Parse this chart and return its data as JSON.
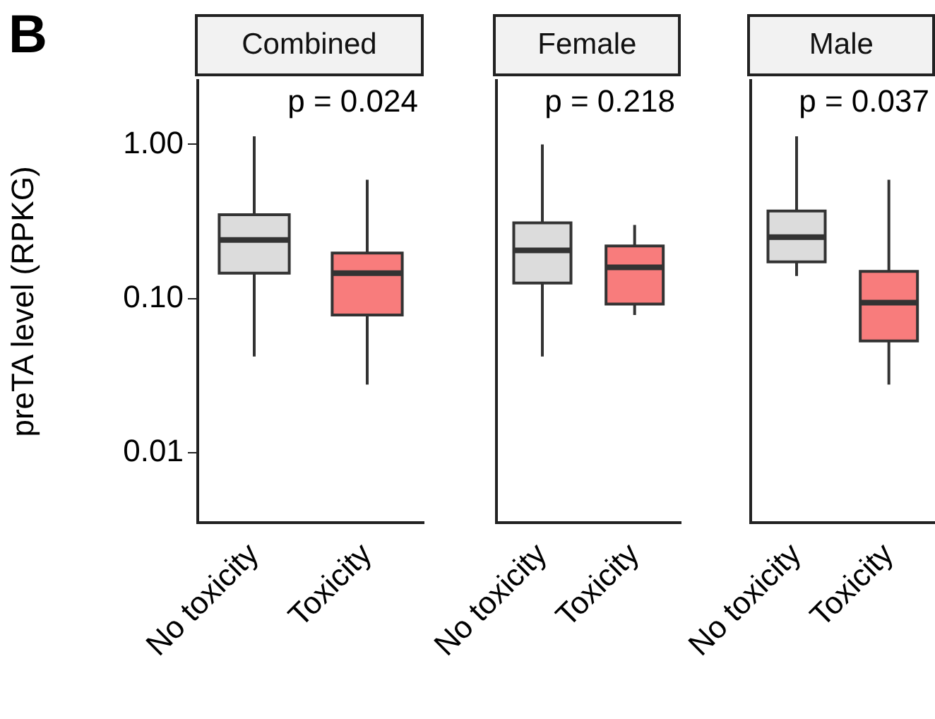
{
  "chart_data": [
    {
      "type": "box",
      "title": "Combined",
      "ylabel": "preTA level (RPKG)",
      "categories": [
        "No toxicity",
        "Toxicity"
      ],
      "colors": [
        "#dcdcdc",
        "#f87c7c"
      ],
      "log": true,
      "ylim": [
        0.0035,
        2.6
      ],
      "yticks": [
        {
          "value": 0.01,
          "label": "0.01"
        },
        {
          "value": 0.1,
          "label": "0.10"
        },
        {
          "value": 1,
          "label": "1.00"
        }
      ],
      "grid": false,
      "legend": false,
      "annotations": [
        "p = 0.024",
        "B"
      ],
      "boxes": [
        {
          "low": 0.042,
          "q1": 0.146,
          "median": 0.24,
          "q3": 0.35,
          "high": 1.13
        },
        {
          "low": 0.0276,
          "q1": 0.078,
          "median": 0.146,
          "q3": 0.197,
          "high": 0.59
        }
      ]
    },
    {
      "type": "box",
      "title": "Female",
      "categories": [
        "No toxicity",
        "Toxicity"
      ],
      "colors": [
        "#dcdcdc",
        "#f87c7c"
      ],
      "log": true,
      "ylim": [
        0.0035,
        2.6
      ],
      "tick_labels": "x",
      "grid": false,
      "legend": false,
      "annotations": [
        "p = 0.218"
      ],
      "boxes": [
        {
          "low": 0.042,
          "q1": 0.126,
          "median": 0.205,
          "q3": 0.31,
          "high": 1.0
        },
        {
          "low": 0.078,
          "q1": 0.092,
          "median": 0.159,
          "q3": 0.219,
          "high": 0.3
        }
      ]
    },
    {
      "type": "box",
      "title": "Male",
      "categories": [
        "No toxicity",
        "Toxicity"
      ],
      "colors": [
        "#dcdcdc",
        "#f87c7c"
      ],
      "log": true,
      "ylim": [
        0.0035,
        2.6
      ],
      "tick_labels": "x",
      "grid": false,
      "legend": false,
      "annotations": [
        "p = 0.037"
      ],
      "boxes": [
        {
          "low": 0.14,
          "q1": 0.173,
          "median": 0.25,
          "q3": 0.37,
          "high": 1.13
        },
        {
          "low": 0.0276,
          "q1": 0.053,
          "median": 0.094,
          "q3": 0.15,
          "high": 0.59
        }
      ]
    }
  ]
}
